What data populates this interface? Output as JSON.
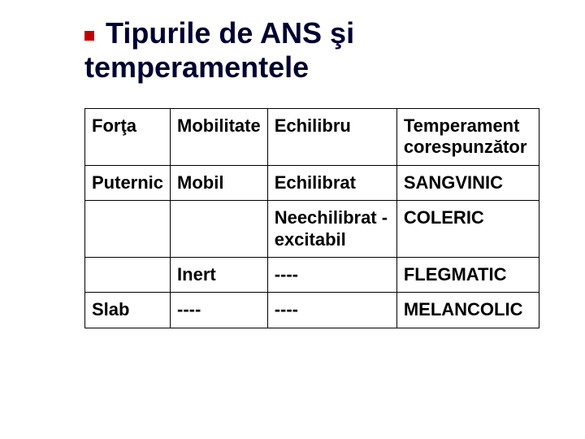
{
  "title": "Tipurile de ANS şi temperamentele",
  "table": {
    "headers": [
      "Forţa",
      "Mobilitate",
      "Echilibru",
      "Temperament corespunzător"
    ],
    "rows": [
      [
        "Puternic",
        "Mobil",
        "Echilibrat",
        "SANGVINIC"
      ],
      [
        "",
        "",
        "Neechilibrat - excitabil",
        "COLERIC"
      ],
      [
        "",
        "Inert",
        "----",
        "FLEGMATIC"
      ],
      [
        "Slab",
        "----",
        "----",
        "MELANCOLIC"
      ]
    ]
  },
  "colors": {
    "title_color": "#000033",
    "bullet_color": "#c00000",
    "border_color": "#000000",
    "background": "#ffffff"
  }
}
